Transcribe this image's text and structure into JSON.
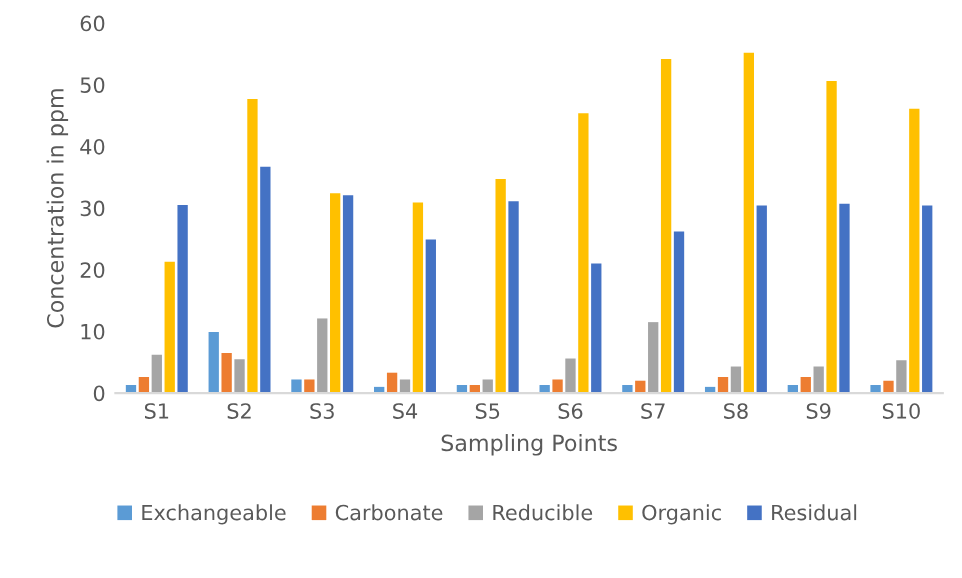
{
  "chart_data": {
    "type": "bar",
    "xlabel": "Sampling Points",
    "ylabel": "Concentration in ppm",
    "categories": [
      "S1",
      "S2",
      "S3",
      "S4",
      "S5",
      "S6",
      "S7",
      "S8",
      "S9",
      "S10"
    ],
    "series": [
      {
        "name": "Exchangeable",
        "color": "#5b9bd5",
        "values": [
          1.3,
          9.9,
          2.2,
          1.0,
          1.3,
          1.3,
          1.3,
          1.0,
          1.3,
          1.3
        ]
      },
      {
        "name": "Carbonate",
        "color": "#ed7d31",
        "values": [
          2.6,
          6.5,
          2.2,
          3.3,
          1.3,
          2.2,
          2.0,
          2.6,
          2.6,
          2.0
        ]
      },
      {
        "name": "Reducible",
        "color": "#a5a5a5",
        "values": [
          6.2,
          5.5,
          12.1,
          2.2,
          2.2,
          5.6,
          11.5,
          4.3,
          4.3,
          5.3
        ]
      },
      {
        "name": "Organic",
        "color": "#ffc000",
        "values": [
          21.3,
          47.7,
          32.4,
          30.9,
          34.7,
          45.4,
          54.2,
          55.2,
          50.6,
          46.1
        ]
      },
      {
        "name": "Residual",
        "color": "#4472c4",
        "values": [
          30.5,
          36.7,
          32.1,
          24.9,
          31.1,
          21.0,
          26.2,
          30.4,
          30.7,
          30.4
        ]
      }
    ],
    "ylim": [
      0,
      60
    ],
    "yticks": [
      0,
      10,
      20,
      30,
      40,
      50,
      60
    ],
    "grid": false,
    "legend": "bottom"
  }
}
